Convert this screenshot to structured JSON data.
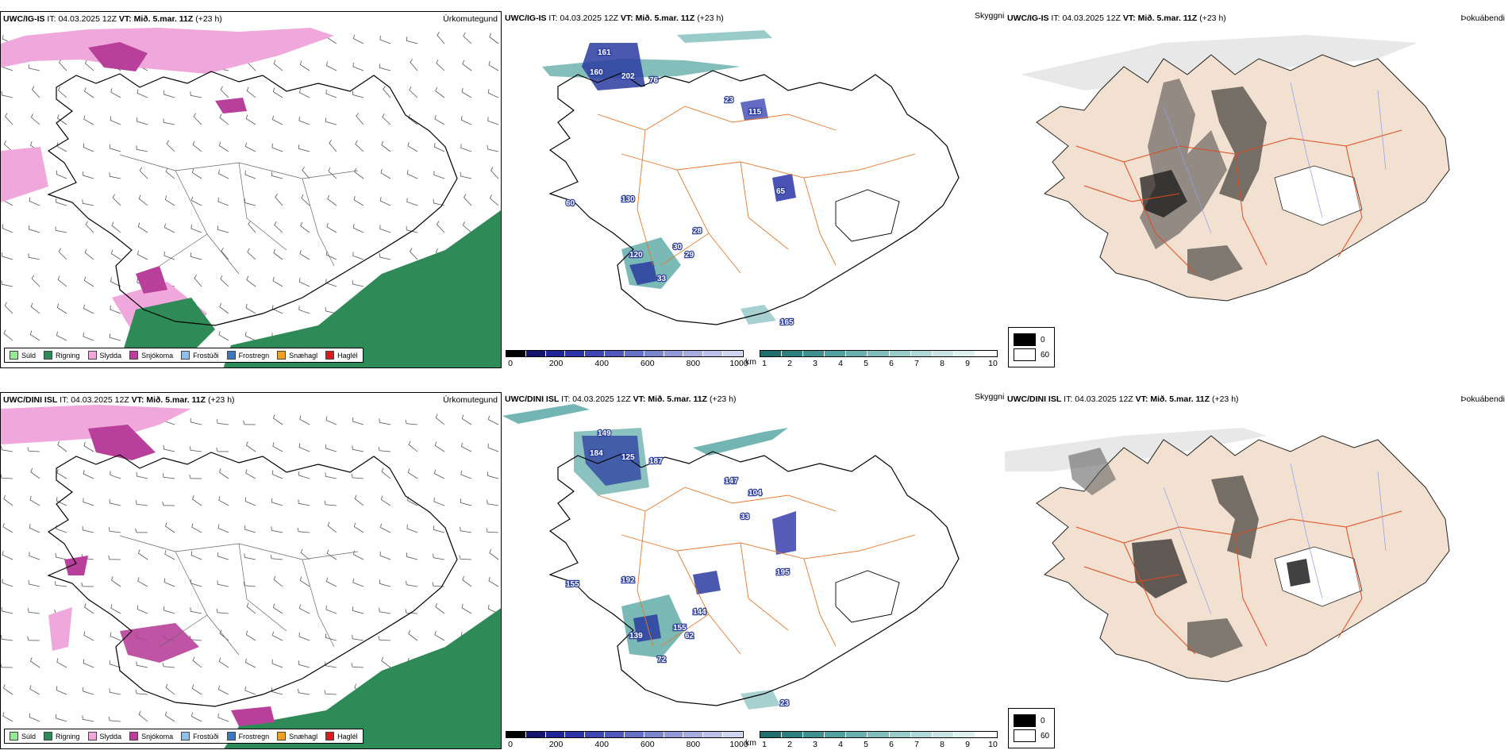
{
  "rows": [
    {
      "model": "UWC/IG-IS",
      "it_label": "IT:",
      "it_value": "04.03.2025 12Z",
      "vt_label": "VT:",
      "vt_value": "Mið. 5.mar. 11Z",
      "lead": "(+23 h)",
      "precip_type_title": "Úrkomutegund",
      "visibility_title": "Skyggni",
      "fog_title": "Þokuábendi",
      "station_values": [
        "161",
        "160",
        "202",
        "76",
        "23",
        "115",
        "65",
        "130",
        "28",
        "30",
        "29",
        "33",
        "120",
        "60",
        "165"
      ]
    },
    {
      "model": "UWC/DINI ISL",
      "it_label": "IT:",
      "it_value": "04.03.2025 12Z",
      "vt_label": "VT:",
      "vt_value": "Mið. 5.mar. 11Z",
      "lead": "(+23 h)",
      "precip_type_title": "Úrkomutegund",
      "visibility_title": "Skyggni",
      "fog_title": "Þokuábendi",
      "station_values": [
        "149",
        "184",
        "125",
        "187",
        "147",
        "104",
        "195",
        "192",
        "144",
        "155",
        "62",
        "72",
        "139",
        "155",
        "23",
        "33"
      ]
    }
  ],
  "precip_legend": [
    {
      "label": "Súld",
      "color": "#90ee90"
    },
    {
      "label": "Rigning",
      "color": "#2e8b57"
    },
    {
      "label": "Slydda",
      "color": "#f0a8dc"
    },
    {
      "label": "Snjókoma",
      "color": "#b8409a"
    },
    {
      "label": "Frostúði",
      "color": "#8cc0ee"
    },
    {
      "label": "Frostregn",
      "color": "#3a78c4"
    },
    {
      "label": "Snæhagl",
      "color": "#f0a020"
    },
    {
      "label": "Haglél",
      "color": "#e01818"
    }
  ],
  "cloud_base_bar": {
    "unit": "m",
    "ticks": [
      "0",
      "200",
      "400",
      "600",
      "800",
      "1000"
    ],
    "colors": [
      "#000000",
      "#14146e",
      "#1e2496",
      "#2c34a8",
      "#3c46b4",
      "#5058bc",
      "#6670c6",
      "#7c86cf",
      "#9298d8",
      "#a6ace0",
      "#bcc0e8",
      "#d0d4f0"
    ]
  },
  "visibility_bar": {
    "unit": "km",
    "ticks": [
      "1",
      "2",
      "3",
      "4",
      "5",
      "6",
      "7",
      "8",
      "9",
      "10"
    ],
    "colors": [
      "#1e6e6e",
      "#2e8080",
      "#3e9090",
      "#52a0a0",
      "#68b0ae",
      "#80bebc",
      "#98ccc8",
      "#b0d8d6",
      "#c8e4e2",
      "#e0f0ef",
      "#ffffff"
    ]
  },
  "fog_legend": [
    {
      "label": "0",
      "color": "#000000"
    },
    {
      "label": "60",
      "color": "#ffffff"
    }
  ],
  "colors": {
    "rain": "#2e8b57",
    "sleet": "#f0a8dc",
    "snow": "#b8409a",
    "road": "#e8782a",
    "river": "#8c9cf0",
    "land": "#f2e0d0",
    "fogroad": "#e04a1e",
    "low_vis": "#5aa8a4",
    "low_cloud": "#2a3ca0"
  }
}
